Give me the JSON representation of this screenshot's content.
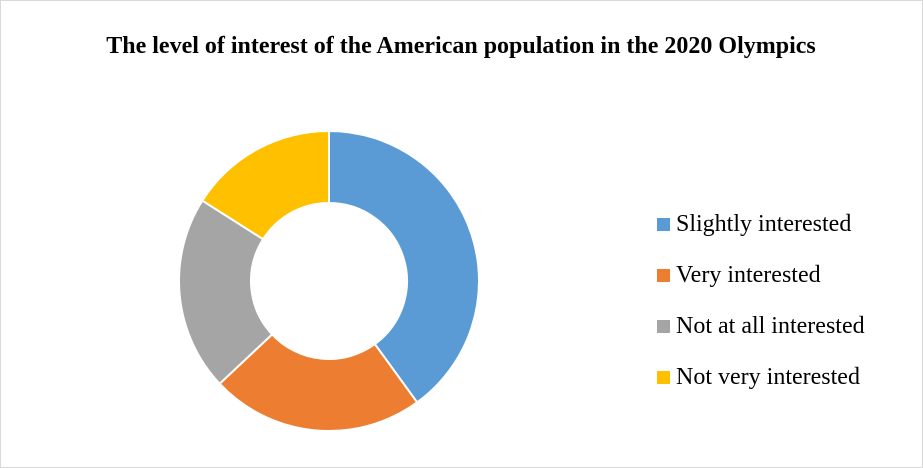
{
  "chart_data": {
    "type": "pie",
    "variant": "donut",
    "title": "The level of interest of the American population in the 2020 Olympics",
    "categories": [
      "Slightly interested",
      "Very interested",
      "Not at all interested",
      "Not very interested"
    ],
    "values": [
      40,
      23,
      21,
      16
    ],
    "unit": "%",
    "colors": [
      "#5B9BD5",
      "#ED7D31",
      "#A5A5A5",
      "#FFC000"
    ],
    "legend_position": "right"
  }
}
